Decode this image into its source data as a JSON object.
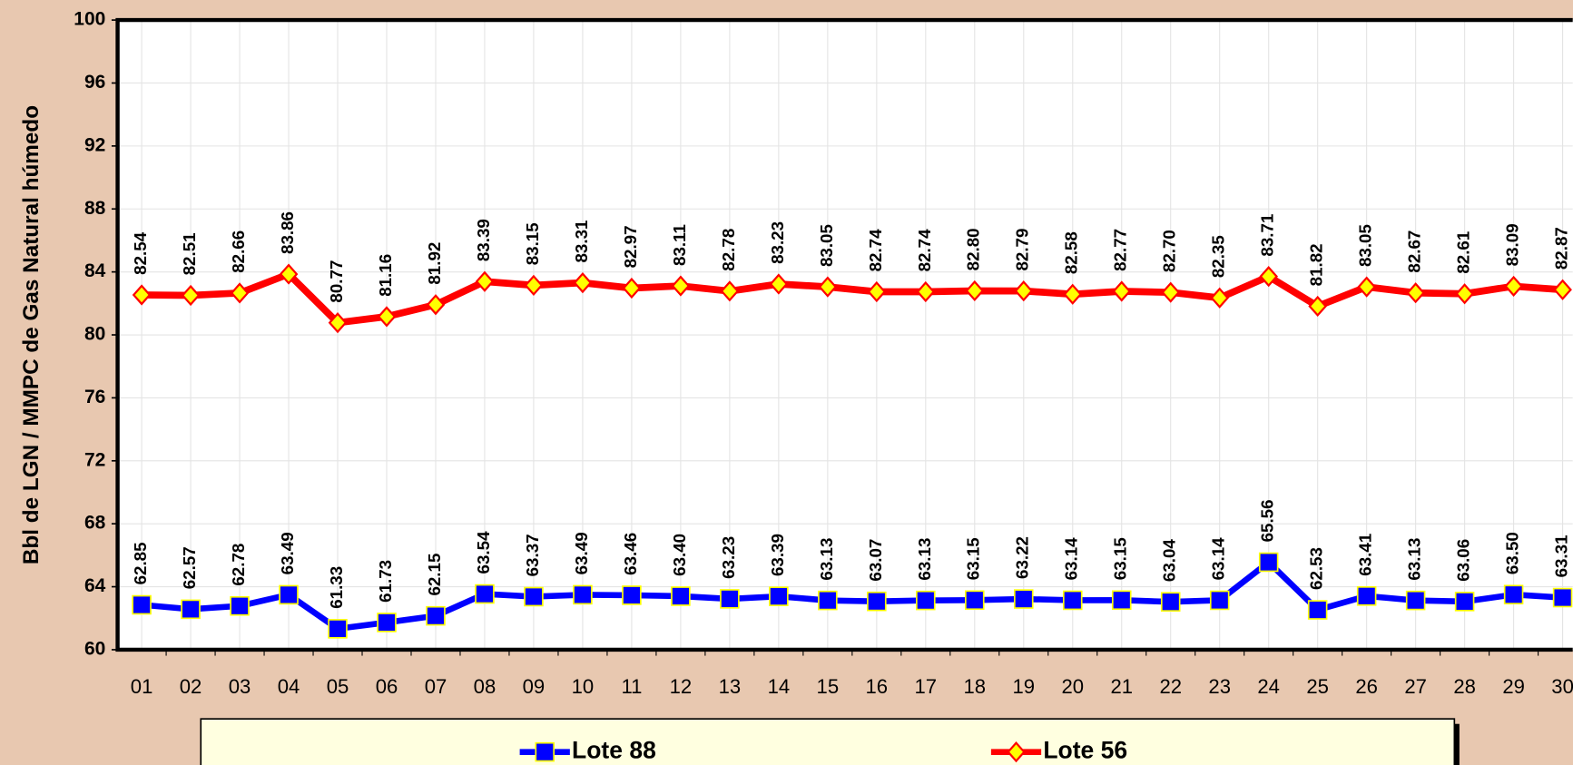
{
  "chart_data": {
    "type": "line",
    "y_label": "Bbl de LGN / MMPC de Gas Natural húmedo",
    "categories": [
      "01",
      "02",
      "03",
      "04",
      "05",
      "06",
      "07",
      "08",
      "09",
      "10",
      "11",
      "12",
      "13",
      "14",
      "15",
      "16",
      "17",
      "18",
      "19",
      "20",
      "21",
      "22",
      "23",
      "24",
      "25",
      "26",
      "27",
      "28",
      "29",
      "30"
    ],
    "series": [
      {
        "name": "Lote 88",
        "color": "#0000ff",
        "marker": "square",
        "values": [
          62.85,
          62.57,
          62.78,
          63.49,
          61.33,
          61.73,
          62.15,
          63.54,
          63.37,
          63.49,
          63.46,
          63.4,
          63.23,
          63.39,
          63.13,
          63.07,
          63.13,
          63.15,
          63.22,
          63.14,
          63.15,
          63.04,
          63.14,
          65.56,
          62.53,
          63.41,
          63.13,
          63.06,
          63.5,
          63.31
        ],
        "value_labels": [
          "62.85",
          "62.57",
          "62.78",
          "63.49",
          "61.33",
          "61.73",
          "62.15",
          "63.54",
          "63.37",
          "63.49",
          "63.46",
          "63.40",
          "63.23",
          "63.39",
          "63.13",
          "63.07",
          "63.13",
          "63.15",
          "63.22",
          "63.14",
          "63.15",
          "63.04",
          "63.14",
          "65.56",
          "62.53",
          "63.41",
          "63.13",
          "63.06",
          "63.50",
          "63.31"
        ]
      },
      {
        "name": "Lote 56",
        "color": "#ff0000",
        "marker": "diamond",
        "values": [
          82.54,
          82.51,
          82.66,
          83.86,
          80.77,
          81.16,
          81.92,
          83.39,
          83.15,
          83.31,
          82.97,
          83.11,
          82.78,
          83.23,
          83.05,
          82.74,
          82.74,
          82.8,
          82.79,
          82.58,
          82.77,
          82.7,
          82.35,
          83.71,
          81.82,
          83.05,
          82.67,
          82.61,
          83.09,
          82.87
        ],
        "value_labels": [
          "82.54",
          "82.51",
          "82.66",
          "83.86",
          "80.77",
          "81.16",
          "81.92",
          "83.39",
          "83.15",
          "83.31",
          "82.97",
          "83.11",
          "82.78",
          "83.23",
          "83.05",
          "82.74",
          "82.74",
          "82.80",
          "82.79",
          "82.58",
          "82.77",
          "82.70",
          "82.35",
          "83.71",
          "81.82",
          "83.05",
          "82.67",
          "82.61",
          "83.09",
          "82.87"
        ]
      }
    ],
    "ylim": [
      60,
      100
    ],
    "yticks": [
      60,
      64,
      68,
      72,
      76,
      80,
      84,
      88,
      92,
      96,
      100
    ],
    "grid": true,
    "legend": "bottom"
  }
}
